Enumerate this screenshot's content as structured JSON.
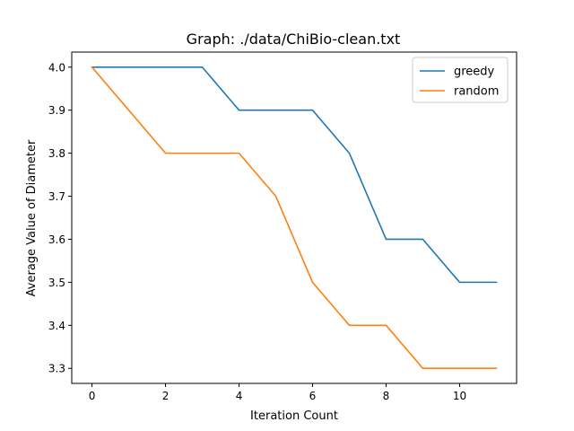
{
  "chart_data": {
    "type": "line",
    "title": "Graph: ./data/ChiBio-clean.txt",
    "xlabel": "Iteration Count",
    "ylabel": "Average Value of Diameter",
    "xlim": [
      -0.55,
      11.55
    ],
    "ylim": [
      3.265,
      4.035
    ],
    "x": [
      0,
      1,
      2,
      3,
      4,
      5,
      6,
      7,
      8,
      9,
      10,
      11
    ],
    "xticks": [
      0,
      2,
      4,
      6,
      8,
      10
    ],
    "xtick_labels": [
      "0",
      "2",
      "4",
      "6",
      "8",
      "10"
    ],
    "yticks": [
      3.3,
      3.4,
      3.5,
      3.6,
      3.7,
      3.8,
      3.9,
      4.0
    ],
    "ytick_labels": [
      "3.3",
      "3.4",
      "3.5",
      "3.6",
      "3.7",
      "3.8",
      "3.9",
      "4.0"
    ],
    "grid": false,
    "legend": "top-right",
    "series": [
      {
        "name": "greedy",
        "color": "#1f77b4",
        "values": [
          4.0,
          4.0,
          4.0,
          4.0,
          3.9,
          3.9,
          3.9,
          3.8,
          3.6,
          3.6,
          3.5,
          3.5
        ]
      },
      {
        "name": "random",
        "color": "#ff7f0e",
        "values": [
          4.0,
          3.9,
          3.8,
          3.8,
          3.8,
          3.7,
          3.5,
          3.4,
          3.4,
          3.3,
          3.3,
          3.3
        ]
      }
    ]
  }
}
